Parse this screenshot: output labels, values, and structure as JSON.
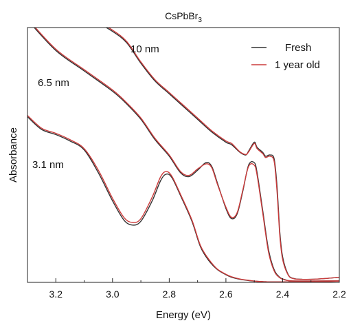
{
  "chart_data": {
    "type": "line",
    "title": "CsPbBr",
    "title_subscript": "3",
    "xlabel": "Energy (eV)",
    "ylabel": "Absorbance",
    "xlim": [
      3.3,
      2.2
    ],
    "ylim": [
      0,
      10
    ],
    "x_reversed": true,
    "x_ticks": [
      3.2,
      3.0,
      2.8,
      2.6,
      2.4,
      2.2
    ],
    "x_tick_labels": [
      "3.2",
      "3.0",
      "2.8",
      "2.6",
      "2.4",
      "2.2"
    ],
    "y_ticks_visible": false,
    "grid": false,
    "legend_position": "top-right",
    "legend": [
      {
        "label": "Fresh",
        "color": "#333333"
      },
      {
        "label": "1 year old",
        "color": "#cc3b3b"
      }
    ],
    "annotations": [
      "10 nm",
      "6.5 nm",
      "3.1 nm"
    ],
    "series": [
      {
        "group": "3.1 nm",
        "name": "Fresh",
        "color": "#333333",
        "x": [
          3.3,
          3.25,
          3.2,
          3.15,
          3.1,
          3.05,
          3.0,
          2.96,
          2.93,
          2.9,
          2.86,
          2.83,
          2.81,
          2.79,
          2.76,
          2.72,
          2.69,
          2.66,
          2.63,
          2.6,
          2.58,
          2.55,
          2.52,
          2.505,
          2.49,
          2.47,
          2.45,
          2.43,
          2.41,
          2.38,
          2.35,
          2.3,
          2.25,
          2.2
        ],
        "y": [
          6.5,
          6.0,
          5.8,
          5.55,
          5.2,
          4.3,
          3.2,
          2.45,
          2.25,
          2.4,
          3.2,
          4.0,
          4.25,
          4.1,
          3.4,
          2.4,
          1.4,
          0.85,
          0.5,
          0.3,
          0.2,
          0.12,
          0.07,
          0.05,
          0.04,
          0.03,
          0.02,
          0.02,
          0.02,
          0.02,
          0.02,
          0.02,
          0.03,
          0.05
        ]
      },
      {
        "group": "3.1 nm",
        "name": "1 year old",
        "color": "#cc3b3b",
        "x": [
          3.3,
          3.25,
          3.2,
          3.15,
          3.1,
          3.05,
          3.0,
          2.96,
          2.93,
          2.9,
          2.86,
          2.83,
          2.81,
          2.79,
          2.76,
          2.72,
          2.69,
          2.66,
          2.63,
          2.6,
          2.58,
          2.55,
          2.52,
          2.505,
          2.49,
          2.47,
          2.45,
          2.43,
          2.41,
          2.38,
          2.35,
          2.3,
          2.25,
          2.2
        ],
        "y": [
          6.55,
          6.05,
          5.85,
          5.6,
          5.25,
          4.4,
          3.3,
          2.55,
          2.35,
          2.5,
          3.35,
          4.15,
          4.35,
          4.15,
          3.45,
          2.45,
          1.45,
          0.9,
          0.52,
          0.32,
          0.22,
          0.13,
          0.08,
          0.06,
          0.04,
          0.03,
          0.02,
          0.02,
          0.02,
          0.02,
          0.02,
          0.02,
          0.03,
          0.05
        ]
      },
      {
        "group": "6.5 nm",
        "name": "Fresh",
        "color": "#333333",
        "x": [
          3.3,
          3.2,
          3.1,
          3.0,
          2.95,
          2.9,
          2.85,
          2.8,
          2.76,
          2.73,
          2.7,
          2.67,
          2.65,
          2.63,
          2.6,
          2.58,
          2.56,
          2.54,
          2.52,
          2.5,
          2.49,
          2.47,
          2.45,
          2.43,
          2.41,
          2.39,
          2.37,
          2.3,
          2.2
        ],
        "y": [
          10.3,
          9.1,
          8.3,
          7.5,
          7.0,
          6.4,
          5.6,
          4.95,
          4.3,
          4.15,
          4.4,
          4.7,
          4.55,
          3.9,
          2.9,
          2.5,
          2.7,
          3.6,
          4.6,
          4.7,
          4.3,
          2.8,
          1.3,
          0.5,
          0.2,
          0.1,
          0.06,
          0.05,
          0.06
        ]
      },
      {
        "group": "6.5 nm",
        "name": "1 year old",
        "color": "#cc3b3b",
        "x": [
          3.3,
          3.2,
          3.1,
          3.0,
          2.95,
          2.9,
          2.85,
          2.8,
          2.76,
          2.73,
          2.7,
          2.67,
          2.65,
          2.63,
          2.6,
          2.58,
          2.56,
          2.54,
          2.52,
          2.5,
          2.49,
          2.47,
          2.45,
          2.43,
          2.41,
          2.39,
          2.37,
          2.3,
          2.2
        ],
        "y": [
          10.35,
          9.15,
          8.35,
          7.55,
          7.05,
          6.45,
          5.65,
          5.0,
          4.35,
          4.2,
          4.45,
          4.65,
          4.5,
          3.85,
          2.95,
          2.55,
          2.75,
          3.65,
          4.55,
          4.6,
          4.2,
          2.7,
          1.2,
          0.45,
          0.18,
          0.09,
          0.06,
          0.05,
          0.06
        ]
      },
      {
        "group": "10 nm",
        "name": "Fresh",
        "color": "#333333",
        "x": [
          3.07,
          3.0,
          2.95,
          2.9,
          2.85,
          2.8,
          2.75,
          2.7,
          2.65,
          2.6,
          2.58,
          2.55,
          2.53,
          2.52,
          2.5,
          2.49,
          2.47,
          2.46,
          2.445,
          2.43,
          2.42,
          2.41,
          2.4,
          2.38,
          2.36,
          2.33,
          2.3,
          2.25,
          2.2
        ],
        "y": [
          10.3,
          9.85,
          9.4,
          8.6,
          7.9,
          7.4,
          6.9,
          6.4,
          5.9,
          5.5,
          5.4,
          5.1,
          5.0,
          5.15,
          5.5,
          5.3,
          5.1,
          4.95,
          5.0,
          4.85,
          3.8,
          2.0,
          1.0,
          0.3,
          0.15,
          0.12,
          0.12,
          0.15,
          0.2
        ]
      },
      {
        "group": "10 nm",
        "name": "1 year old",
        "color": "#cc3b3b",
        "x": [
          3.07,
          3.0,
          2.95,
          2.9,
          2.85,
          2.8,
          2.75,
          2.7,
          2.65,
          2.6,
          2.58,
          2.55,
          2.53,
          2.52,
          2.5,
          2.49,
          2.47,
          2.46,
          2.445,
          2.43,
          2.42,
          2.41,
          2.4,
          2.38,
          2.36,
          2.33,
          2.3,
          2.25,
          2.2
        ],
        "y": [
          10.35,
          9.9,
          9.45,
          8.65,
          7.95,
          7.45,
          6.95,
          6.45,
          5.95,
          5.55,
          5.45,
          5.12,
          5.02,
          5.12,
          5.45,
          5.25,
          5.05,
          4.9,
          4.95,
          4.75,
          3.6,
          1.85,
          0.9,
          0.28,
          0.14,
          0.12,
          0.12,
          0.15,
          0.2
        ]
      }
    ]
  }
}
